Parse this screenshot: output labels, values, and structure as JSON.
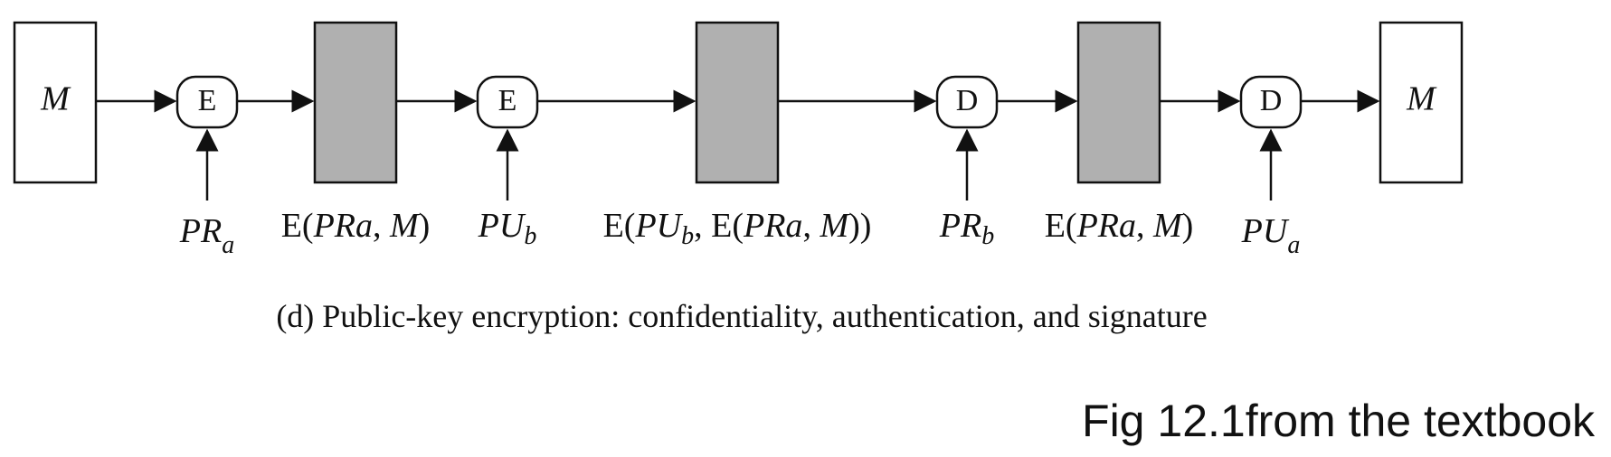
{
  "diagram": {
    "input_label": "M",
    "output_label": "M",
    "operations": [
      "E",
      "E",
      "D",
      "D"
    ],
    "keys": [
      {
        "main": "PR",
        "sub": "a"
      },
      {
        "main": "PU",
        "sub": "b"
      },
      {
        "main": "PR",
        "sub": "b"
      },
      {
        "main": "PU",
        "sub": "a"
      }
    ],
    "intermediate_labels": [
      {
        "pre": "E(",
        "parts": [
          [
            "PRa",
            true
          ],
          [
            ", ",
            false
          ],
          [
            "M",
            true
          ]
        ],
        "post": ")"
      },
      {
        "pre": "E(",
        "parts": [
          [
            "PU",
            true
          ],
          [
            "b",
            true,
            "sub"
          ],
          [
            ", E(",
            false
          ],
          [
            "PRa",
            true
          ],
          [
            ", ",
            false
          ],
          [
            "M",
            true
          ]
        ],
        "post": "))"
      },
      {
        "pre": "E(",
        "parts": [
          [
            "PRa",
            true
          ],
          [
            ", ",
            false
          ],
          [
            "M",
            true
          ]
        ],
        "post": ")"
      }
    ],
    "caption": "(d) Public-key encryption: confidentiality, authentication, and signature",
    "box_fill": "#b0b0b0"
  },
  "footer_note": "Fig 12.1from the textbook"
}
